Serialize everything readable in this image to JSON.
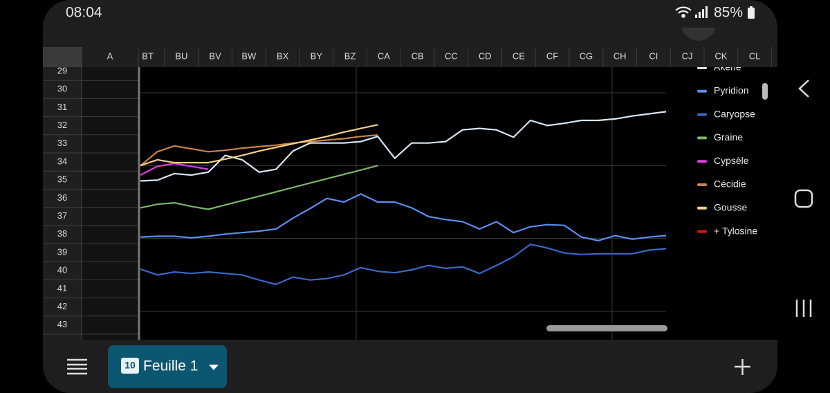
{
  "status_bar": {
    "time": "08:04",
    "battery": "85%"
  },
  "sheet": {
    "column_headers": [
      "A",
      "BT",
      "BU",
      "BV",
      "BW",
      "BX",
      "BY",
      "BZ",
      "CA",
      "CB",
      "CC",
      "CD",
      "CE",
      "CF",
      "CG",
      "CH",
      "CI",
      "CJ",
      "CK",
      "CL"
    ],
    "row_headers": [
      29,
      30,
      31,
      32,
      33,
      34,
      35,
      36,
      37,
      38,
      39,
      40,
      41,
      42,
      43
    ]
  },
  "chart_data": {
    "type": "line",
    "ylim": [
      0,
      3
    ],
    "yticks": [
      0,
      1,
      2,
      3
    ],
    "grid": true,
    "legend": "right",
    "series": [
      {
        "name": "Akène",
        "color": "#d6e6f5",
        "values": [
          1.79,
          1.8,
          1.89,
          1.87,
          1.91,
          2.14,
          2.08,
          1.91,
          1.95,
          2.2,
          2.31,
          2.31,
          2.31,
          2.33,
          2.4,
          2.1,
          2.31,
          2.31,
          2.33,
          2.49,
          2.51,
          2.49,
          2.39,
          2.62,
          2.55,
          2.58,
          2.62,
          2.62,
          2.64,
          2.68,
          2.71,
          2.74
        ]
      },
      {
        "name": "Pyridion",
        "color": "#5b8ef0",
        "values": [
          1.02,
          1.03,
          1.03,
          1.01,
          1.03,
          1.06,
          1.08,
          1.1,
          1.13,
          1.28,
          1.41,
          1.55,
          1.5,
          1.61,
          1.5,
          1.5,
          1.42,
          1.3,
          1.26,
          1.23,
          1.13,
          1.23,
          1.08,
          1.16,
          1.19,
          1.18,
          1.02,
          0.97,
          1.04,
          0.99,
          1.02,
          1.04
        ]
      },
      {
        "name": "Caryopse",
        "color": "#3a68c8",
        "values": [
          0.58,
          0.5,
          0.54,
          0.52,
          0.54,
          0.52,
          0.5,
          0.43,
          0.37,
          0.47,
          0.43,
          0.45,
          0.5,
          0.6,
          0.55,
          0.53,
          0.57,
          0.63,
          0.59,
          0.61,
          0.52,
          0.63,
          0.75,
          0.92,
          0.87,
          0.8,
          0.78,
          0.79,
          0.79,
          0.79,
          0.84,
          0.86
        ]
      },
      {
        "name": "Graine",
        "color": "#7cb56a",
        "values": [
          1.42,
          1.47,
          1.49,
          1.44,
          1.4,
          1.46,
          1.52,
          1.58,
          1.64,
          1.7,
          1.76,
          1.82,
          1.88,
          1.94,
          2.0,
          null,
          null,
          null,
          null,
          null,
          null,
          null,
          null,
          null,
          null,
          null,
          null,
          null,
          null,
          null,
          null,
          null
        ]
      },
      {
        "name": "Cypsèle",
        "color": "#e03ce0",
        "values": [
          1.87,
          1.99,
          2.03,
          1.99,
          1.95,
          null,
          null,
          null,
          null,
          null,
          null,
          null,
          null,
          null,
          null,
          null,
          null,
          null,
          null,
          null,
          null,
          null,
          null,
          null,
          null,
          null,
          null,
          null,
          null,
          null,
          null,
          null
        ]
      },
      {
        "name": "Cécidie",
        "color": "#c98545",
        "values": [
          2.0,
          2.19,
          2.27,
          2.23,
          2.19,
          2.21,
          2.24,
          2.26,
          2.28,
          2.31,
          2.33,
          2.35,
          2.37,
          2.4,
          2.42,
          null,
          null,
          null,
          null,
          null,
          null,
          null,
          null,
          null,
          null,
          null,
          null,
          null,
          null,
          null,
          null,
          null
        ]
      },
      {
        "name": "Gousse",
        "color": "#f5d08a",
        "values": [
          2.0,
          2.08,
          2.04,
          2.04,
          2.04,
          2.09,
          2.14,
          2.2,
          2.25,
          2.3,
          2.35,
          2.4,
          2.46,
          2.51,
          2.56,
          null,
          null,
          null,
          null,
          null,
          null,
          null,
          null,
          null,
          null,
          null,
          null,
          null,
          null,
          null,
          null,
          null
        ]
      },
      {
        "name": "+ Tylosine",
        "color": "#e01010",
        "values": [
          null,
          null,
          null,
          null,
          null,
          null,
          null,
          null,
          null,
          null,
          null,
          null,
          null,
          null,
          null,
          null,
          null,
          null,
          null,
          null,
          null,
          null,
          null,
          null,
          null,
          null,
          null,
          null,
          null,
          null,
          null,
          null
        ]
      }
    ]
  },
  "bottom_bar": {
    "sheet_tab": {
      "badge": "10",
      "name": "Feuille 1"
    }
  }
}
